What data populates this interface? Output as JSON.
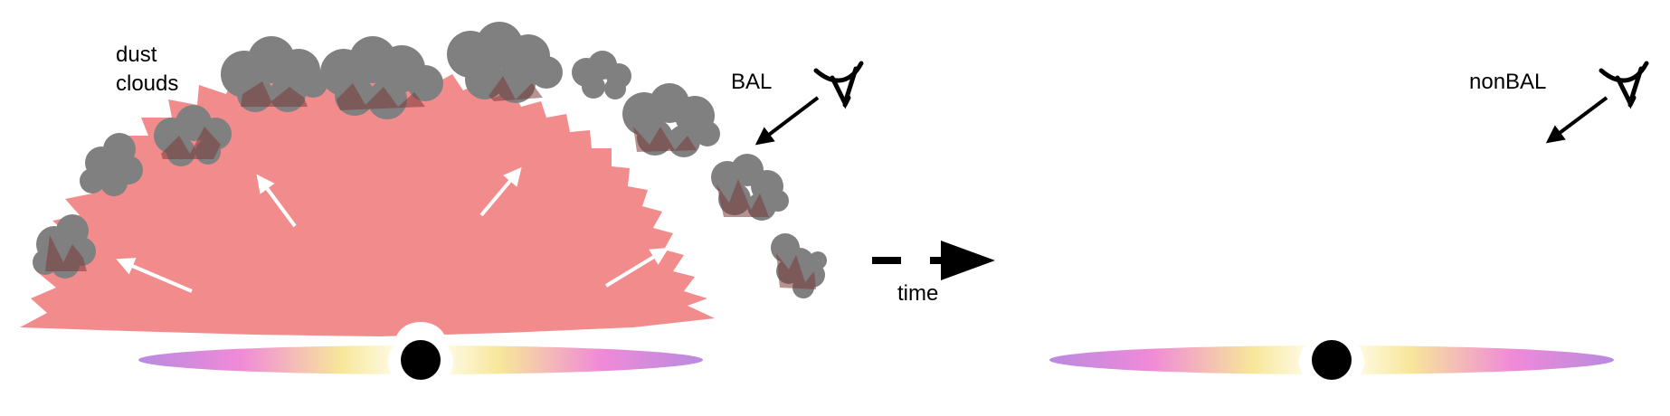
{
  "labels": {
    "dust_line1": "dust",
    "dust_line2": "clouds",
    "bal": "BAL",
    "time": "time",
    "nonbal": "nonBAL"
  },
  "icons": [
    "eye-icon",
    "black-hole",
    "accretion-disk",
    "dust-cloud",
    "outflow-arrow",
    "time-arrow"
  ],
  "colors": {
    "outflow": "#f28c8c",
    "cloud": "#808080",
    "cloud_overlap": "#7a3a3a",
    "disk_edge": "#c47ee6",
    "disk_mid": "#f08ad8",
    "disk_inner": "#f5e890",
    "disk_core": "#fffbe0",
    "black_hole": "#000000"
  }
}
